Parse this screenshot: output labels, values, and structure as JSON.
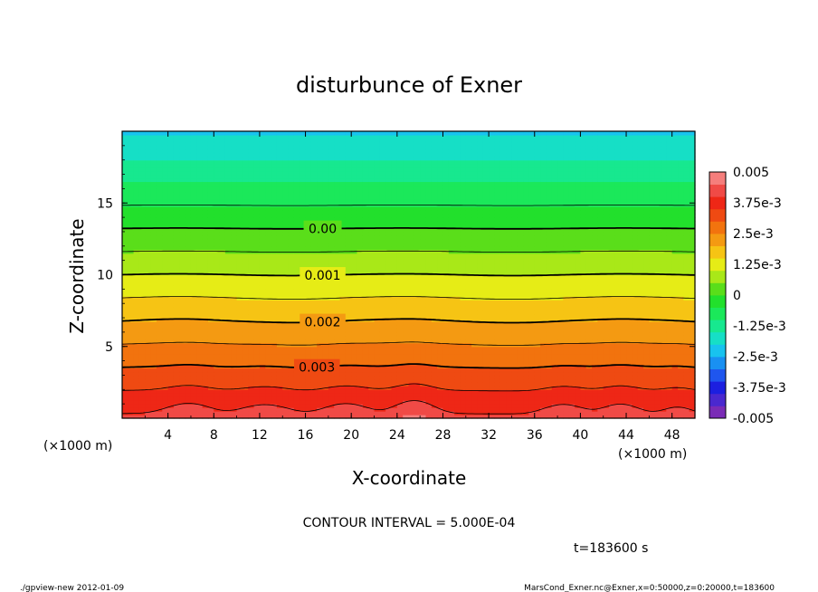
{
  "chart_data": {
    "type": "heatmap",
    "title": "disturbunce of Exner",
    "xlabel": "X-coordinate",
    "ylabel": "Z-coordinate",
    "x_unit": "(×1000 m)",
    "y_unit": "(×1000 m)",
    "xlim": [
      0,
      50
    ],
    "ylim": [
      0,
      20
    ],
    "x_ticks": [
      4,
      8,
      12,
      16,
      20,
      24,
      28,
      32,
      36,
      40,
      44,
      48
    ],
    "y_ticks": [
      5,
      10,
      15
    ],
    "colorbar": {
      "min": -0.005,
      "max": 0.005,
      "labels": [
        "0.005",
        "3.75e-3",
        "2.5e-3",
        "1.25e-3",
        "0",
        "-1.25e-3",
        "-2.5e-3",
        "-3.75e-3",
        "-0.005"
      ]
    },
    "contour_labels": [
      {
        "text": "0.00",
        "value": 0.0
      },
      {
        "text": "0.001",
        "value": 0.001
      },
      {
        "text": "0.002",
        "value": 0.002
      },
      {
        "text": "0.003",
        "value": 0.003
      }
    ],
    "contour_interval_text": "CONTOUR INTERVAL = 5.000E-04",
    "time_text": "t=183600  s"
  },
  "footer": {
    "left": "./gpview-new   2012-01-09",
    "right": "MarsCond_Exner.nc@Exner,x=0:50000,z=0:20000,t=183600"
  },
  "colors": {
    "palette": [
      "#7a2bb6",
      "#4a28cf",
      "#1c1fe0",
      "#1f56ee",
      "#1990f2",
      "#18c3ef",
      "#16dfc6",
      "#17e88f",
      "#1be85a",
      "#22e02c",
      "#5ade1a",
      "#a9e818",
      "#e6ec16",
      "#f6c414",
      "#f49a12",
      "#f2730e",
      "#ef4a12",
      "#ee2716",
      "#f04a46",
      "#f57e7c"
    ]
  }
}
